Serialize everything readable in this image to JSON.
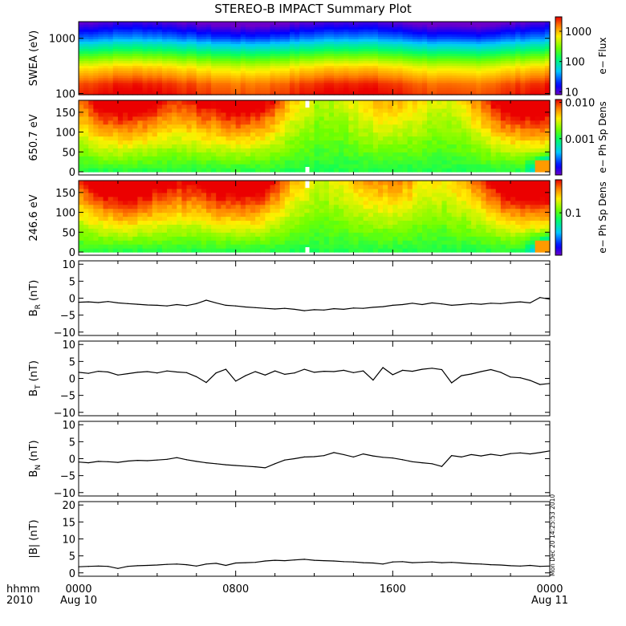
{
  "title": "STEREO-B IMPACT Summary Plot",
  "stamp": "Mon Dec 20 14:25:53 2010",
  "time_axis": {
    "row1_labels": [
      "0000",
      "0800",
      "1600",
      "0000"
    ],
    "row2_labels": [
      "Aug 10",
      "",
      "",
      "Aug 11"
    ],
    "units_label": "hhmm",
    "year_label": "2010",
    "range_hours": [
      0,
      24
    ]
  },
  "chart_data": [
    {
      "type": "heatmap",
      "name": "SWEA",
      "ylabel": "SWEA (eV)",
      "ylog": true,
      "yrange": [
        95,
        2000
      ],
      "yticks": [
        100,
        1000
      ],
      "yticklabels": [
        "100",
        "1000"
      ],
      "colorbar": {
        "label": "e− Flux",
        "log": true,
        "range": [
          8,
          3000
        ],
        "ticks": [
          10,
          100,
          1000
        ],
        "ticklabels": [
          "10",
          "100",
          "1000"
        ]
      },
      "profile_energies_eV": [
        100,
        150,
        200,
        300,
        400,
        500,
        600,
        800,
        1000,
        1300,
        1600,
        2000
      ],
      "profile_flux": [
        2500,
        2000,
        1300,
        700,
        350,
        200,
        120,
        60,
        30,
        18,
        12,
        8
      ]
    },
    {
      "type": "heatmap",
      "name": "PAD 650.7 eV",
      "ylabel": "650.7 eV",
      "yrange": [
        -8,
        180
      ],
      "yticks": [
        0,
        50,
        100,
        150
      ],
      "yticklabels": [
        "0",
        "50",
        "100",
        "150"
      ],
      "colorbar": {
        "label": "e− Ph Sp Dens",
        "log": true,
        "range": [
          0.0001,
          0.012
        ],
        "ticks": [
          0.001,
          0.01
        ],
        "ticklabels": [
          "0.001",
          "0.010"
        ]
      }
    },
    {
      "type": "heatmap",
      "name": "PAD 246.6 eV",
      "ylabel": "246.6 eV",
      "yrange": [
        -8,
        180
      ],
      "yticks": [
        0,
        50,
        100,
        150
      ],
      "yticklabels": [
        "0",
        "50",
        "100",
        "150"
      ],
      "colorbar": {
        "label": "e− Ph Sp Dens",
        "log": true,
        "range": [
          0.02,
          0.35
        ],
        "ticks": [
          0.1
        ],
        "ticklabels": [
          "0.1"
        ]
      }
    },
    {
      "type": "line",
      "name": "BR",
      "ylabel_main": "B",
      "ylabel_sub": "R",
      "ylabel_tail": " (nT)",
      "yrange": [
        -11,
        11
      ],
      "yticks": [
        -10,
        -5,
        0,
        5,
        10
      ],
      "yticklabels": [
        "−10",
        "−5",
        "0",
        "5",
        "10"
      ],
      "x": [
        0,
        0.5,
        1,
        1.5,
        2,
        2.5,
        3,
        3.5,
        4,
        4.5,
        5,
        5.5,
        6,
        6.5,
        7,
        7.5,
        8,
        8.5,
        9,
        9.5,
        10,
        10.5,
        11,
        11.5,
        12,
        12.5,
        13,
        13.5,
        14,
        14.5,
        15,
        15.5,
        16,
        16.5,
        17,
        17.5,
        18,
        18.5,
        19,
        19.5,
        20,
        20.5,
        21,
        21.5,
        22,
        22.5,
        23,
        23.5,
        24
      ],
      "y": [
        -1.2,
        -1.1,
        -1.3,
        -1.0,
        -1.4,
        -1.6,
        -1.8,
        -2.0,
        -2.1,
        -2.3,
        -1.9,
        -2.2,
        -1.6,
        -0.6,
        -1.4,
        -2.1,
        -2.3,
        -2.6,
        -2.8,
        -3.0,
        -3.2,
        -3.0,
        -3.3,
        -3.7,
        -3.4,
        -3.5,
        -3.1,
        -3.3,
        -2.9,
        -3.0,
        -2.7,
        -2.5,
        -2.1,
        -1.9,
        -1.5,
        -1.9,
        -1.4,
        -1.7,
        -2.1,
        -1.9,
        -1.6,
        -1.8,
        -1.5,
        -1.6,
        -1.3,
        -1.1,
        -1.4,
        0.2,
        -0.3
      ]
    },
    {
      "type": "line",
      "name": "BT",
      "ylabel_main": "B",
      "ylabel_sub": "T",
      "ylabel_tail": " (nT)",
      "yrange": [
        -11,
        11
      ],
      "yticks": [
        -10,
        -5,
        0,
        5,
        10
      ],
      "yticklabels": [
        "−10",
        "−5",
        "0",
        "5",
        "10"
      ],
      "x": [
        0,
        0.5,
        1,
        1.5,
        2,
        2.5,
        3,
        3.5,
        4,
        4.5,
        5,
        5.5,
        6,
        6.5,
        7,
        7.5,
        8,
        8.5,
        9,
        9.5,
        10,
        10.5,
        11,
        11.5,
        12,
        12.5,
        13,
        13.5,
        14,
        14.5,
        15,
        15.5,
        16,
        16.5,
        17,
        17.5,
        18,
        18.5,
        19,
        19.5,
        20,
        20.5,
        21,
        21.5,
        22,
        22.5,
        23,
        23.5,
        24
      ],
      "y": [
        1.8,
        1.5,
        2.1,
        1.9,
        1.0,
        1.4,
        1.8,
        2.0,
        1.6,
        2.2,
        1.9,
        1.7,
        0.5,
        -1.2,
        1.6,
        2.7,
        -0.8,
        0.8,
        2.0,
        1.0,
        2.2,
        1.2,
        1.6,
        2.7,
        1.8,
        2.1,
        2.0,
        2.4,
        1.7,
        2.2,
        -0.5,
        3.2,
        1.1,
        2.4,
        2.1,
        2.7,
        3.0,
        2.6,
        -1.3,
        0.8,
        1.3,
        2.0,
        2.6,
        1.8,
        0.4,
        0.2,
        -0.6,
        -1.8,
        -1.5
      ]
    },
    {
      "type": "line",
      "name": "BN",
      "ylabel_main": "B",
      "ylabel_sub": "N",
      "ylabel_tail": " (nT)",
      "yrange": [
        -11,
        11
      ],
      "yticks": [
        -10,
        -5,
        0,
        5,
        10
      ],
      "yticklabels": [
        "−10",
        "−5",
        "0",
        "5",
        "10"
      ],
      "x": [
        0,
        0.5,
        1,
        1.5,
        2,
        2.5,
        3,
        3.5,
        4,
        4.5,
        5,
        5.5,
        6,
        6.5,
        7,
        7.5,
        8,
        8.5,
        9,
        9.5,
        10,
        10.5,
        11,
        11.5,
        12,
        12.5,
        13,
        13.5,
        14,
        14.5,
        15,
        15.5,
        16,
        16.5,
        17,
        17.5,
        18,
        18.5,
        19,
        19.5,
        20,
        20.5,
        21,
        21.5,
        22,
        22.5,
        23,
        23.5,
        24
      ],
      "y": [
        -1.0,
        -1.2,
        -0.8,
        -0.9,
        -1.1,
        -0.7,
        -0.5,
        -0.6,
        -0.4,
        -0.2,
        0.3,
        -0.3,
        -0.8,
        -1.2,
        -1.5,
        -1.8,
        -2.0,
        -2.2,
        -2.4,
        -2.7,
        -1.5,
        -0.4,
        0.0,
        0.5,
        0.6,
        0.9,
        1.8,
        1.2,
        0.5,
        1.4,
        0.8,
        0.4,
        0.2,
        -0.3,
        -0.9,
        -1.2,
        -1.5,
        -2.3,
        0.9,
        0.5,
        1.2,
        0.8,
        1.3,
        0.9,
        1.5,
        1.7,
        1.4,
        1.8,
        2.3
      ]
    },
    {
      "type": "line",
      "name": "|B|",
      "ylabel": "|B| (nT)",
      "yrange": [
        -1,
        21
      ],
      "yticks": [
        0,
        5,
        10,
        15,
        20
      ],
      "yticklabels": [
        "0",
        "5",
        "10",
        "15",
        "20"
      ],
      "x": [
        0,
        0.5,
        1,
        1.5,
        2,
        2.5,
        3,
        3.5,
        4,
        4.5,
        5,
        5.5,
        6,
        6.5,
        7,
        7.5,
        8,
        8.5,
        9,
        9.5,
        10,
        10.5,
        11,
        11.5,
        12,
        12.5,
        13,
        13.5,
        14,
        14.5,
        15,
        15.5,
        16,
        16.5,
        17,
        17.5,
        18,
        18.5,
        19,
        19.5,
        20,
        20.5,
        21,
        21.5,
        22,
        22.5,
        23,
        23.5,
        24
      ],
      "y": [
        1.8,
        1.9,
        2.0,
        1.9,
        1.3,
        1.9,
        2.1,
        2.2,
        2.3,
        2.5,
        2.6,
        2.4,
        2.0,
        2.6,
        2.8,
        2.2,
        2.9,
        3.0,
        3.1,
        3.5,
        3.7,
        3.6,
        3.8,
        4.0,
        3.7,
        3.6,
        3.5,
        3.3,
        3.2,
        3.0,
        2.9,
        2.6,
        3.2,
        3.3,
        3.0,
        3.1,
        3.2,
        3.0,
        3.1,
        2.9,
        2.7,
        2.6,
        2.4,
        2.3,
        2.1,
        2.0,
        2.2,
        1.9,
        2.0
      ]
    }
  ]
}
